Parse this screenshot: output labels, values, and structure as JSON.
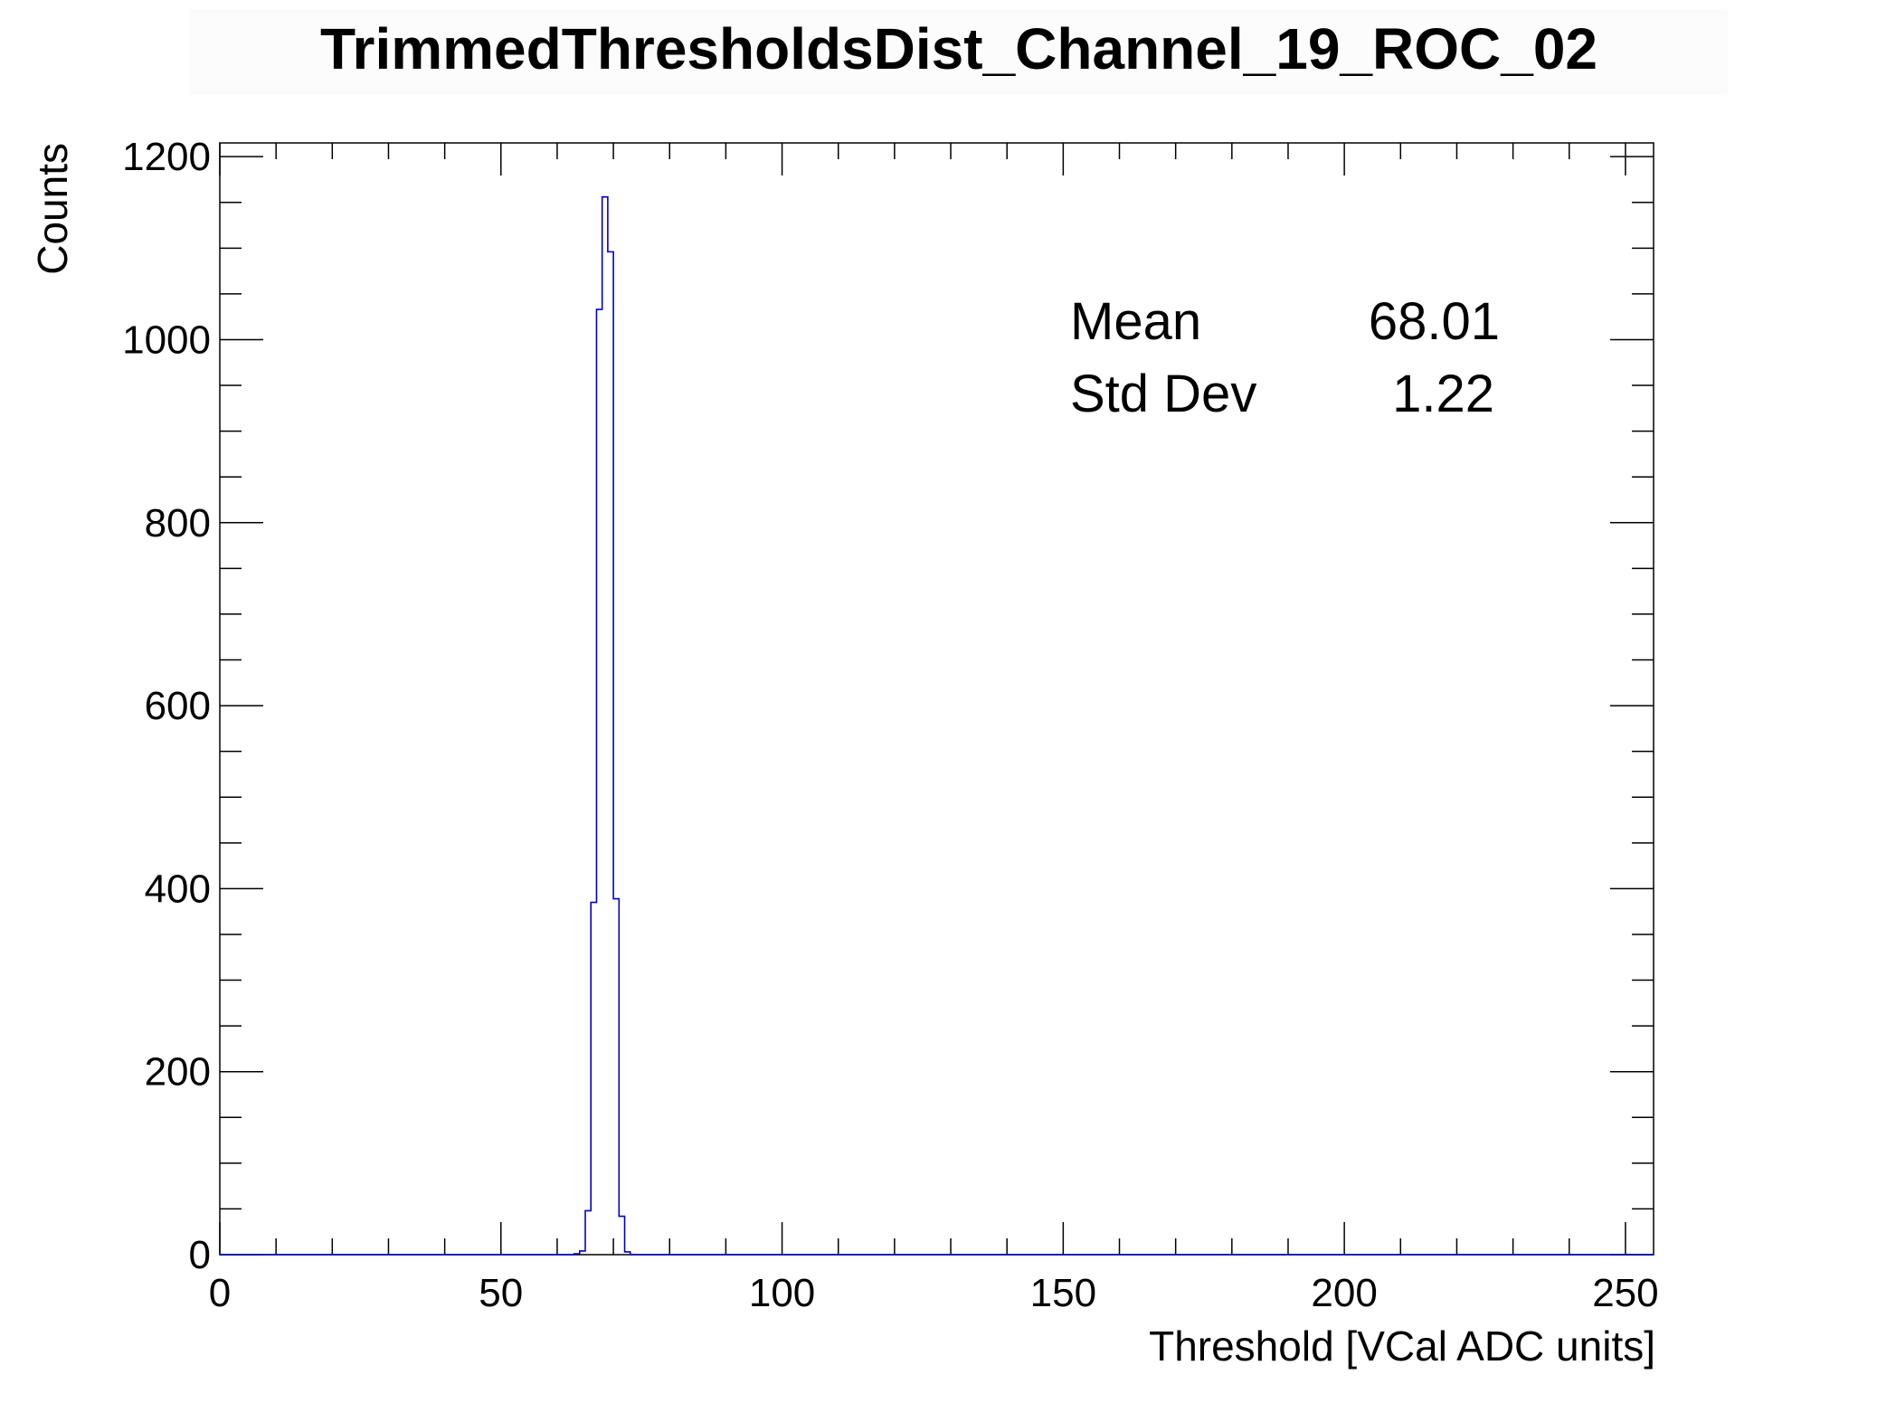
{
  "chart_data": {
    "type": "histogram",
    "title": "TrimmedThresholdsDist_Channel_19_ROC_02",
    "xlabel": "Threshold [VCal ADC units]",
    "ylabel": "Counts",
    "xlim": [
      0,
      255
    ],
    "ylim": [
      0,
      1215
    ],
    "x_ticks": [
      "0",
      "50",
      "100",
      "150",
      "200",
      "250"
    ],
    "y_ticks": [
      "0",
      "200",
      "400",
      "600",
      "800",
      "1000",
      "1200"
    ],
    "bin_width": 1,
    "line_color": "#0000cc",
    "bins": [
      {
        "x": 63,
        "count": 1
      },
      {
        "x": 64,
        "count": 4
      },
      {
        "x": 65,
        "count": 48
      },
      {
        "x": 66,
        "count": 385
      },
      {
        "x": 67,
        "count": 1033
      },
      {
        "x": 68,
        "count": 1156
      },
      {
        "x": 69,
        "count": 1096
      },
      {
        "x": 70,
        "count": 389
      },
      {
        "x": 71,
        "count": 42
      },
      {
        "x": 72,
        "count": 3
      }
    ],
    "stats": {
      "mean_label": "Mean",
      "mean_value": "68.01",
      "std_label": "Std Dev",
      "std_value": "1.22"
    }
  }
}
